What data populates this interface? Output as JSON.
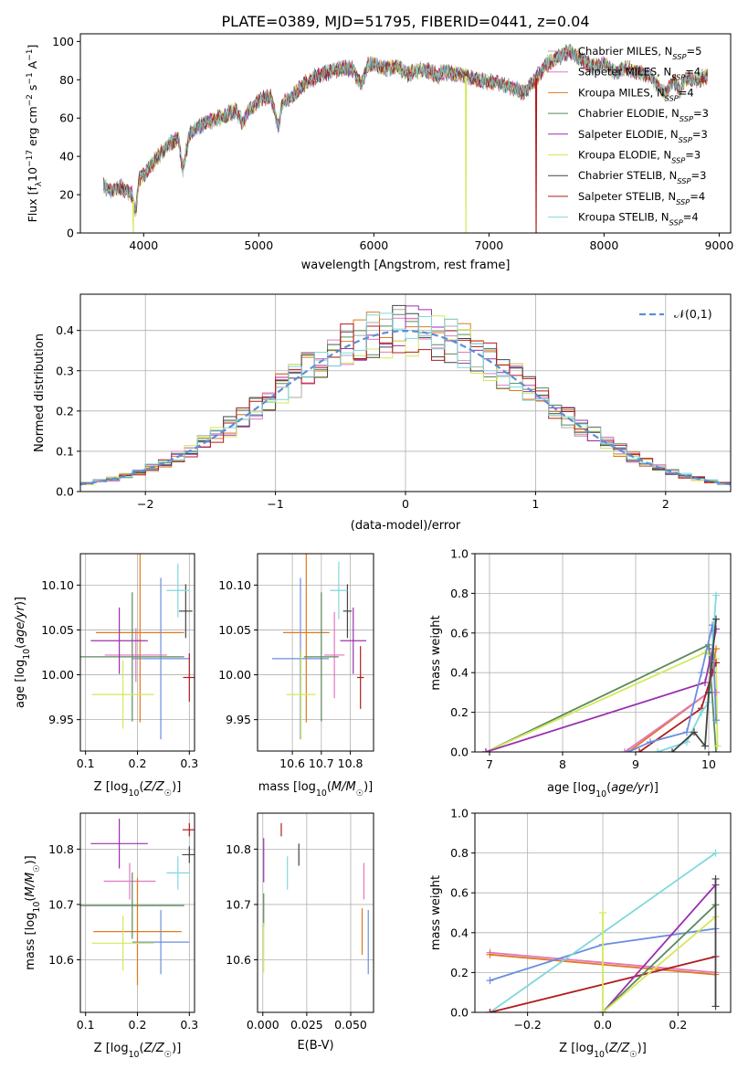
{
  "figure": {
    "title": "PLATE=0389, MJD=51795, FIBERID=0441, z=0.04"
  },
  "chart_data": [
    {
      "id": "spectrum",
      "type": "line",
      "xlabel": "wavelength [Angstrom, rest frame]",
      "ylabel": "Flux [f_λ 10^-17 erg cm^-2 s^-1 A^-1]",
      "xlim": [
        3450,
        9100
      ],
      "ylim": [
        0,
        104
      ],
      "xticks": [
        4000,
        5000,
        6000,
        7000,
        8000,
        9000
      ],
      "yticks": [
        0,
        20,
        40,
        60,
        80,
        100
      ],
      "grid": false,
      "legend_position": "right",
      "x_range_shown": [
        3650,
        8900
      ],
      "legend": [
        {
          "name": "Chabrier MILES, N_SSP=5",
          "color": "#aaaaaa"
        },
        {
          "name": "Salpeter MILES, N_SSP=4",
          "color": "#e377c2"
        },
        {
          "name": "Kroupa MILES, N_SSP=4",
          "color": "#e07a1e"
        },
        {
          "name": "Chabrier ELODIE, N_SSP=3",
          "color": "#5a8a5a"
        },
        {
          "name": "Salpeter ELODIE, N_SSP=3",
          "color": "#9b30b0"
        },
        {
          "name": "Kroupa ELODIE, N_SSP=3",
          "color": "#d4e85a"
        },
        {
          "name": "Chabrier STELIB, N_SSP=3",
          "color": "#444444"
        },
        {
          "name": "Salpeter STELIB, N_SSP=4",
          "color": "#b01c1c"
        },
        {
          "name": "Kroupa STELIB, N_SSP=4",
          "color": "#7fd8dd"
        }
      ],
      "shape_points": [
        [
          3650,
          25
        ],
        [
          3700,
          22
        ],
        [
          3800,
          24
        ],
        [
          3900,
          20
        ],
        [
          3930,
          10
        ],
        [
          3960,
          28
        ],
        [
          4000,
          30
        ],
        [
          4100,
          38
        ],
        [
          4200,
          45
        ],
        [
          4300,
          50
        ],
        [
          4340,
          33
        ],
        [
          4400,
          52
        ],
        [
          4500,
          56
        ],
        [
          4600,
          59
        ],
        [
          4700,
          61
        ],
        [
          4800,
          64
        ],
        [
          4861,
          57
        ],
        [
          4900,
          63
        ],
        [
          5000,
          69
        ],
        [
          5100,
          72
        ],
        [
          5175,
          55
        ],
        [
          5200,
          67
        ],
        [
          5300,
          72
        ],
        [
          5400,
          78
        ],
        [
          5500,
          82
        ],
        [
          5600,
          84
        ],
        [
          5700,
          86
        ],
        [
          5800,
          86
        ],
        [
          5890,
          78
        ],
        [
          5950,
          88
        ],
        [
          6000,
          88
        ],
        [
          6100,
          86
        ],
        [
          6200,
          87
        ],
        [
          6300,
          83
        ],
        [
          6400,
          85
        ],
        [
          6500,
          84
        ],
        [
          6563,
          82
        ],
        [
          6600,
          84
        ],
        [
          6700,
          83
        ],
        [
          6800,
          82
        ],
        [
          6900,
          80
        ],
        [
          7000,
          79
        ],
        [
          7100,
          78
        ],
        [
          7200,
          76
        ],
        [
          7300,
          73
        ],
        [
          7400,
          80
        ],
        [
          7500,
          88
        ],
        [
          7600,
          92
        ],
        [
          7700,
          95
        ],
        [
          7800,
          91
        ],
        [
          7900,
          87
        ],
        [
          8000,
          88
        ],
        [
          8100,
          84
        ],
        [
          8200,
          86
        ],
        [
          8300,
          84
        ],
        [
          8400,
          82
        ],
        [
          8498,
          75
        ],
        [
          8542,
          73
        ],
        [
          8600,
          80
        ],
        [
          8662,
          74
        ],
        [
          8700,
          80
        ],
        [
          8800,
          80
        ],
        [
          8900,
          82
        ]
      ],
      "dropouts": [
        [
          3910,
          "#d4e85a"
        ],
        [
          6800,
          "#d4e85a"
        ],
        [
          7410,
          "#b01c1c"
        ]
      ]
    },
    {
      "id": "residuals",
      "type": "histogram",
      "xlabel": "(data-model)/error",
      "ylabel": "Normed distribution",
      "xlim": [
        -2.5,
        2.5
      ],
      "ylim": [
        0,
        0.49
      ],
      "xticks": [
        -2,
        -1,
        0,
        1,
        2
      ],
      "yticks": [
        0,
        0.1,
        0.2,
        0.3,
        0.4
      ],
      "grid": true,
      "bin_width": 0.1,
      "reference_curve": {
        "name": "𝒩(0,1)",
        "type": "normal",
        "mean": 0,
        "sigma": 1,
        "color": "#5b8fd6",
        "dashed": true
      },
      "legend_position": "top-right"
    },
    {
      "id": "age_vs_Z",
      "type": "errorbar",
      "xlabel": "Z [log10(Z/Z☉)]",
      "ylabel": "age  [log10(age/yr)]",
      "xlim": [
        0.09,
        0.31
      ],
      "ylim": [
        9.915,
        10.135
      ],
      "xticks": [
        0.1,
        0.2,
        0.3
      ],
      "yticks": [
        9.95,
        10.0,
        10.05,
        10.1
      ],
      "grid": true,
      "points": [
        {
          "x": 0.245,
          "y": 10.018,
          "xerr": 0.055,
          "yerr": 0.09,
          "color": "#6a8ee0"
        },
        {
          "x": 0.197,
          "y": 10.022,
          "xerr": 0.06,
          "yerr": 0.03,
          "color": "#e377c2"
        },
        {
          "x": 0.205,
          "y": 10.047,
          "xerr": 0.085,
          "yerr": 0.1,
          "color": "#e07a1e"
        },
        {
          "x": 0.19,
          "y": 10.02,
          "xerr": 0.1,
          "yerr": 0.072,
          "color": "#5a8a5a"
        },
        {
          "x": 0.165,
          "y": 10.038,
          "xerr": 0.055,
          "yerr": 0.037,
          "color": "#9b30b0"
        },
        {
          "x": 0.172,
          "y": 9.978,
          "xerr": 0.06,
          "yerr": 0.038,
          "color": "#d4e85a"
        },
        {
          "x": 0.293,
          "y": 10.071,
          "xerr": 0.013,
          "yerr": 0.03,
          "color": "#444444"
        },
        {
          "x": 0.3,
          "y": 9.997,
          "xerr": 0.012,
          "yerr": 0.027,
          "color": "#b01c1c"
        },
        {
          "x": 0.278,
          "y": 10.094,
          "xerr": 0.022,
          "yerr": 0.03,
          "color": "#7fd8dd"
        }
      ]
    },
    {
      "id": "age_vs_mass",
      "type": "errorbar",
      "xlabel": "mass [log10(M/M☉)]",
      "ylabel": "",
      "xlim": [
        10.48,
        10.88
      ],
      "ylim": [
        9.915,
        10.135
      ],
      "xticks": [
        10.6,
        10.7,
        10.8
      ],
      "yticks": [
        9.95,
        10.0,
        10.05,
        10.1
      ],
      "grid": true,
      "points": [
        {
          "x": 10.628,
          "y": 10.018,
          "xerr": 0.098,
          "yerr": 0.09,
          "color": "#6a8ee0"
        },
        {
          "x": 10.745,
          "y": 10.022,
          "xerr": 0.035,
          "yerr": 0.048,
          "color": "#e377c2"
        },
        {
          "x": 10.648,
          "y": 10.047,
          "xerr": 0.08,
          "yerr": 0.1,
          "color": "#e07a1e"
        },
        {
          "x": 10.7,
          "y": 10.02,
          "xerr": 0.06,
          "yerr": 0.072,
          "color": "#5a8a5a"
        },
        {
          "x": 10.81,
          "y": 10.038,
          "xerr": 0.045,
          "yerr": 0.037,
          "color": "#9b30b0"
        },
        {
          "x": 10.63,
          "y": 9.978,
          "xerr": 0.05,
          "yerr": 0.05,
          "color": "#d4e85a"
        },
        {
          "x": 10.79,
          "y": 10.071,
          "xerr": 0.015,
          "yerr": 0.03,
          "color": "#444444"
        },
        {
          "x": 10.835,
          "y": 9.997,
          "xerr": 0.012,
          "yerr": 0.035,
          "color": "#b01c1c"
        },
        {
          "x": 10.76,
          "y": 10.094,
          "xerr": 0.03,
          "yerr": 0.032,
          "color": "#7fd8dd"
        }
      ]
    },
    {
      "id": "massweight_vs_age",
      "type": "line",
      "xlabel": "age  [log10(age/yr)]",
      "ylabel": "mass weight",
      "xlim": [
        6.8,
        10.3
      ],
      "ylim": [
        0,
        1
      ],
      "xticks": [
        7,
        8,
        9,
        10
      ],
      "yticks": [
        0,
        0.2,
        0.4,
        0.6,
        0.8,
        1.0
      ],
      "grid": true,
      "series": [
        {
          "color": "#5a8a5a",
          "points": [
            [
              6.95,
              0
            ],
            [
              10.0,
              0.54
            ],
            [
              10.1,
              0.0
            ]
          ]
        },
        {
          "color": "#d4e85a",
          "points": [
            [
              6.95,
              0
            ],
            [
              9.95,
              0.5
            ],
            [
              10.1,
              0.47
            ],
            [
              10.12,
              0.03
            ]
          ]
        },
        {
          "color": "#9b30b0",
          "points": [
            [
              6.95,
              0
            ],
            [
              9.95,
              0.35
            ],
            [
              10.05,
              0.52
            ],
            [
              10.1,
              0.62
            ]
          ]
        },
        {
          "color": "#e07a1e",
          "points": [
            [
              8.9,
              0
            ],
            [
              10.0,
              0.3
            ],
            [
              10.1,
              0.52
            ]
          ]
        },
        {
          "color": "#e377c2",
          "points": [
            [
              8.85,
              0
            ],
            [
              10.0,
              0.3
            ],
            [
              10.1,
              0.3
            ]
          ]
        },
        {
          "color": "#b01c1c",
          "points": [
            [
              9.05,
              0
            ],
            [
              9.9,
              0.22
            ],
            [
              10.05,
              0.4
            ],
            [
              10.1,
              0.45
            ]
          ]
        },
        {
          "color": "#6a8ee0",
          "points": [
            [
              8.9,
              0
            ],
            [
              9.2,
              0.05
            ],
            [
              9.7,
              0.1
            ],
            [
              9.9,
              0.4
            ],
            [
              10.05,
              0.64
            ],
            [
              10.1,
              0.16
            ]
          ]
        },
        {
          "color": "#7fd8dd",
          "points": [
            [
              9.3,
              0
            ],
            [
              9.7,
              0.05
            ],
            [
              9.9,
              0.2
            ],
            [
              10.0,
              0.25
            ],
            [
              10.1,
              0.79
            ]
          ]
        },
        {
          "color": "#444444",
          "points": [
            [
              9.5,
              0
            ],
            [
              9.8,
              0.1
            ],
            [
              9.95,
              0.03
            ],
            [
              10.0,
              0.3
            ],
            [
              10.1,
              0.67
            ]
          ]
        }
      ]
    },
    {
      "id": "mass_vs_Z",
      "type": "errorbar",
      "xlabel": "Z [log10(Z/Z☉)]",
      "ylabel": "mass [log10(M/M☉)]",
      "xlim": [
        0.09,
        0.31
      ],
      "ylim": [
        10.505,
        10.865
      ],
      "xticks": [
        0.1,
        0.2,
        0.3
      ],
      "yticks": [
        10.6,
        10.7,
        10.8
      ],
      "grid": true,
      "points": [
        {
          "x": 0.245,
          "y": 10.632,
          "xerr": 0.055,
          "yerr": 0.058,
          "color": "#6a8ee0"
        },
        {
          "x": 0.185,
          "y": 10.742,
          "xerr": 0.05,
          "yerr": 0.033,
          "color": "#e377c2"
        },
        {
          "x": 0.2,
          "y": 10.651,
          "xerr": 0.085,
          "yerr": 0.097,
          "color": "#e07a1e"
        },
        {
          "x": 0.19,
          "y": 10.698,
          "xerr": 0.1,
          "yerr": 0.06,
          "color": "#5a8a5a"
        },
        {
          "x": 0.165,
          "y": 10.81,
          "xerr": 0.055,
          "yerr": 0.045,
          "color": "#9b30b0"
        },
        {
          "x": 0.172,
          "y": 10.63,
          "xerr": 0.06,
          "yerr": 0.05,
          "color": "#d4e85a"
        },
        {
          "x": 0.3,
          "y": 10.79,
          "xerr": 0.014,
          "yerr": 0.015,
          "color": "#444444"
        },
        {
          "x": 0.3,
          "y": 10.835,
          "xerr": 0.013,
          "yerr": 0.012,
          "color": "#b01c1c"
        },
        {
          "x": 0.278,
          "y": 10.757,
          "xerr": 0.022,
          "yerr": 0.03,
          "color": "#7fd8dd"
        }
      ]
    },
    {
      "id": "mass_vs_ebv",
      "type": "errorbar",
      "xlabel": "E(B-V)",
      "ylabel": "",
      "xlim": [
        -0.003,
        0.063
      ],
      "ylim": [
        10.505,
        10.865
      ],
      "xticks": [
        0.0,
        0.025,
        0.05
      ],
      "xticklabels": [
        "0.000",
        "0.025",
        "0.050"
      ],
      "yticks": [
        10.6,
        10.7,
        10.8
      ],
      "grid": true,
      "points": [
        {
          "x": 0.06,
          "y": 10.632,
          "xerr": 0,
          "yerr": 0.058,
          "color": "#6a8ee0"
        },
        {
          "x": 0.0575,
          "y": 10.742,
          "xerr": 0,
          "yerr": 0.033,
          "color": "#e377c2"
        },
        {
          "x": 0.0565,
          "y": 10.651,
          "xerr": 0,
          "yerr": 0.042,
          "color": "#e07a1e"
        },
        {
          "x": 0.0005,
          "y": 10.69,
          "xerr": 0,
          "yerr": 0.03,
          "color": "#5a8a5a"
        },
        {
          "x": 0.0005,
          "y": 10.78,
          "xerr": 0,
          "yerr": 0.04,
          "color": "#9b30b0"
        },
        {
          "x": 0.0005,
          "y": 10.622,
          "xerr": 0,
          "yerr": 0.045,
          "color": "#d4e85a"
        },
        {
          "x": 0.0205,
          "y": 10.79,
          "xerr": 0,
          "yerr": 0.02,
          "color": "#444444"
        },
        {
          "x": 0.0105,
          "y": 10.835,
          "xerr": 0,
          "yerr": 0.012,
          "color": "#b01c1c"
        },
        {
          "x": 0.014,
          "y": 10.757,
          "xerr": 0,
          "yerr": 0.03,
          "color": "#7fd8dd"
        }
      ]
    },
    {
      "id": "massweight_vs_Z",
      "type": "line",
      "xlabel": "Z [log10(Z/Z☉)]",
      "ylabel": "mass weight",
      "xlim": [
        -0.34,
        0.34
      ],
      "ylim": [
        0,
        1
      ],
      "xticks": [
        -0.2,
        0.0,
        0.2
      ],
      "xticklabels": [
        "−0.2",
        "0.0",
        "0.2"
      ],
      "yticks": [
        0,
        0.2,
        0.4,
        0.6,
        0.8,
        1.0
      ],
      "grid": true,
      "series": [
        {
          "color": "#e377c2",
          "points": [
            [
              -0.3,
              0.3
            ],
            [
              0.3,
              0.2
            ]
          ]
        },
        {
          "color": "#e07a1e",
          "points": [
            [
              -0.3,
              0.29
            ],
            [
              0.3,
              0.19
            ]
          ]
        },
        {
          "color": "#6a8ee0",
          "points": [
            [
              -0.3,
              0.16
            ],
            [
              0.0,
              0.34
            ],
            [
              0.3,
              0.42
            ]
          ]
        },
        {
          "color": "#7fd8dd",
          "points": [
            [
              -0.3,
              0
            ],
            [
              0.3,
              0.8
            ]
          ]
        },
        {
          "color": "#b01c1c",
          "points": [
            [
              -0.3,
              0
            ],
            [
              0.3,
              0.28
            ]
          ]
        },
        {
          "color": "#9b30b0",
          "points": [
            [
              0.0,
              0
            ],
            [
              0.3,
              0.64
            ]
          ]
        },
        {
          "color": "#5a8a5a",
          "points": [
            [
              0.0,
              0
            ],
            [
              0.3,
              0.54
            ]
          ]
        },
        {
          "color": "#d4e85a",
          "points": [
            [
              0.0,
              0.5
            ],
            [
              0.0,
              0
            ],
            [
              0.3,
              0.48
            ]
          ]
        },
        {
          "color": "#444444",
          "points": [
            [
              0.3,
              0.67
            ],
            [
              0.3,
              0.03
            ]
          ]
        }
      ]
    }
  ]
}
